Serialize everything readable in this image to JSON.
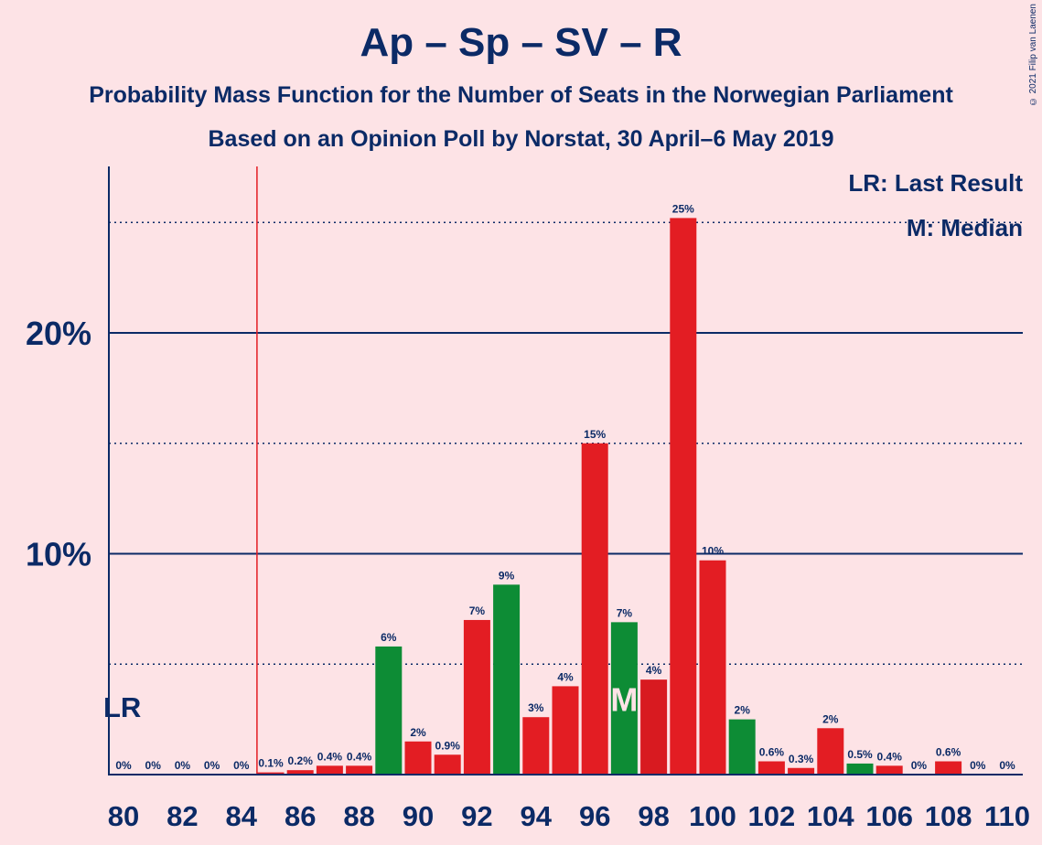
{
  "title": "Ap – Sp – SV – R",
  "subtitle_1": "Probability Mass Function for the Number of Seats in the Norwegian Parliament",
  "subtitle_2": "Based on an Opinion Poll by Norstat, 30 April–6 May 2019",
  "copyright": "© 2021 Filip van Laenen",
  "legend": {
    "lr": "LR: Last Result",
    "m": "M: Median"
  },
  "colors": {
    "red": "#e31d23",
    "green": "#0d8c35",
    "dark_red": "#d81a20",
    "navy": "#0b2a66",
    "background": "#fde3e6"
  },
  "chart_data": {
    "type": "bar",
    "x": [
      80,
      81,
      82,
      83,
      84,
      85,
      86,
      87,
      88,
      89,
      90,
      91,
      92,
      93,
      94,
      95,
      96,
      97,
      98,
      99,
      100,
      101,
      102,
      103,
      104,
      105,
      106,
      107,
      108,
      109,
      110
    ],
    "values": [
      0,
      0,
      0,
      0,
      0,
      0.1,
      0.2,
      0.4,
      0.4,
      5.8,
      1.5,
      0.9,
      7.0,
      8.6,
      2.6,
      4.0,
      15.0,
      6.9,
      4.3,
      25.2,
      9.7,
      2.5,
      0.6,
      0.3,
      2.1,
      0.5,
      0.4,
      0,
      0.6,
      0,
      0
    ],
    "labels": [
      "0%",
      "0%",
      "0%",
      "0%",
      "0%",
      "0.1%",
      "0.2%",
      "0.4%",
      "0.4%",
      "6%",
      "2%",
      "0.9%",
      "7%",
      "9%",
      "3%",
      "4%",
      "15%",
      "7%",
      "4%",
      "25%",
      "10%",
      "2%",
      "0.6%",
      "0.3%",
      "2%",
      "0.5%",
      "0.4%",
      "0%",
      "0.6%",
      "0%",
      "0%"
    ],
    "bar_colors": [
      "red",
      "red",
      "red",
      "red",
      "red",
      "red",
      "red",
      "red",
      "red",
      "green",
      "red",
      "red",
      "red",
      "green",
      "red",
      "red",
      "red",
      "green",
      "dark_red",
      "red",
      "red",
      "green",
      "red",
      "red",
      "red",
      "green",
      "red",
      "red",
      "red",
      "red",
      "red"
    ],
    "x_tick_labels": [
      "80",
      "82",
      "84",
      "86",
      "88",
      "90",
      "92",
      "94",
      "96",
      "98",
      "100",
      "102",
      "104",
      "106",
      "108",
      "110"
    ],
    "y_tick_labels": [
      "10%",
      "20%"
    ],
    "ylim": [
      0,
      27.5
    ],
    "last_result": 85,
    "last_result_label": "LR",
    "median": 97,
    "median_label": "M"
  }
}
